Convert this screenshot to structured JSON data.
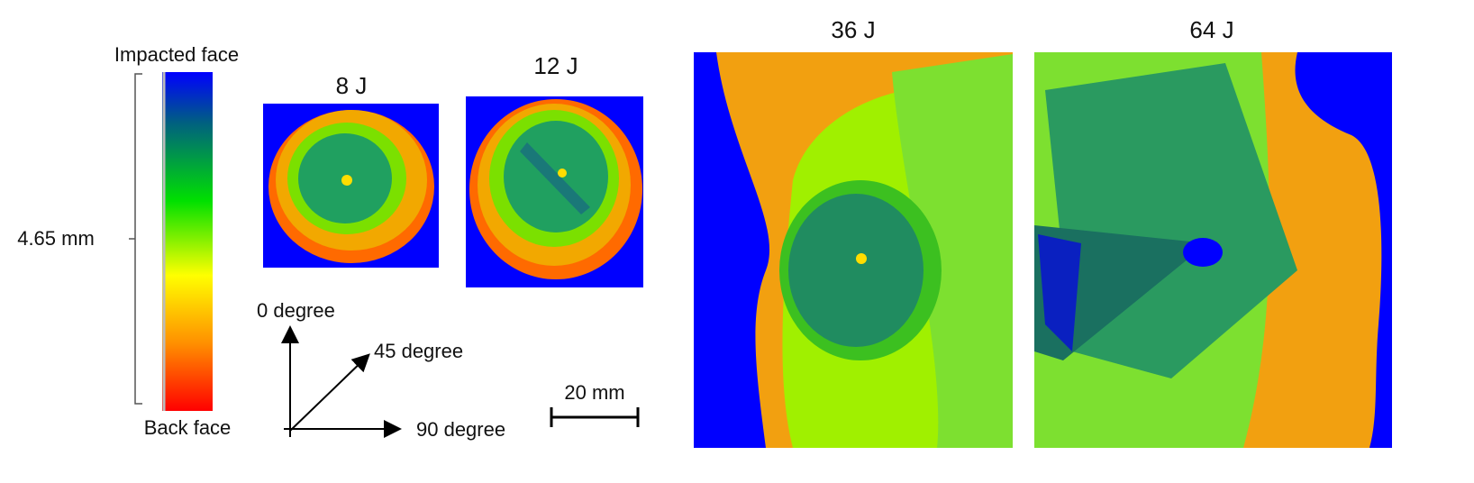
{
  "colorbar": {
    "top_label": "Impacted face",
    "bottom_label": "Back face",
    "thickness_label": "4.65 mm"
  },
  "panels": [
    {
      "label": "8 J"
    },
    {
      "label": "12 J"
    },
    {
      "label": "36 J"
    },
    {
      "label": "64 J"
    }
  ],
  "orientation": {
    "labels": [
      "0 degree",
      "45 degree",
      "90 degree"
    ]
  },
  "scale_bar": {
    "label": "20 mm"
  }
}
